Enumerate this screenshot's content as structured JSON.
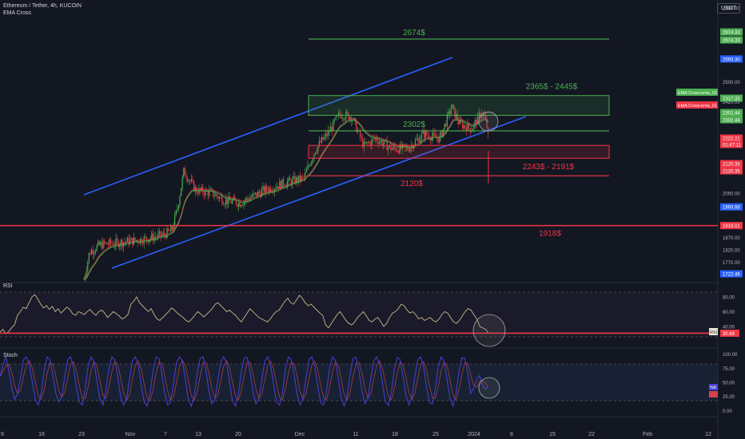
{
  "header": {
    "symbol": "Ethereum / Tether, 4h, KUCOIN",
    "indicator": "EMA Cross",
    "currency": "USDT"
  },
  "panes": {
    "rsi": "RSI",
    "stoch": "Stoch"
  },
  "colors": {
    "background": "#131722",
    "green": "#4caf50",
    "red": "#f23645",
    "blue": "#2962ff",
    "rsi_line": "#c8b98a",
    "stoch_k": "#4b3fd9",
    "stoch_d": "#d4434b"
  },
  "chart_data": {
    "type": "candlestick",
    "price_axis": {
      "ticks": [
        "2800.00",
        "2674.33",
        "2674.33",
        "2593.30",
        "2500.00",
        "2420.00",
        "2317.33",
        "2302.44",
        "2302.44",
        "2260.00",
        "2222.21",
        "01:47:11",
        "2120.35",
        "2120.35",
        "2050.00",
        "1993.66",
        "1918.01",
        "1870.00",
        "1820.00",
        "1770.00",
        "1722.46"
      ],
      "ylim": [
        1700,
        2800
      ]
    },
    "time_axis": [
      "9",
      "16",
      "23",
      "Nov",
      "7",
      "13",
      "20",
      "Dec",
      "11",
      "18",
      "25",
      "2024",
      "8",
      "15",
      "22",
      "Feb",
      "12"
    ],
    "levels": [
      {
        "price": 2674,
        "label": "2674$",
        "color": "green"
      },
      {
        "price": 2302,
        "label": "2302$",
        "color": "green"
      },
      {
        "price": 2120,
        "label": "2120$",
        "color": "red"
      },
      {
        "price": 1918,
        "label": "1918$",
        "color": "red"
      }
    ],
    "zones": [
      {
        "from": 2365,
        "to": 2445,
        "label": "2365$ - 2445$",
        "color": "green"
      },
      {
        "from": 2191,
        "to": 2243,
        "label": "2243$ - 2191$",
        "color": "red"
      }
    ],
    "ema_labels": [
      {
        "text": "EMA Cross:ema_02",
        "price": 2317.33,
        "color": "green"
      },
      {
        "text": "EMA Cross:ema_01",
        "price": 2302.44,
        "color": "red"
      }
    ],
    "rsi": {
      "ticks": [
        "80.00",
        "60.00",
        "40.00",
        "30.69"
      ],
      "ylim": [
        15,
        95
      ],
      "current": 30.69,
      "level": 30.69,
      "badge": "RSI",
      "values": [
        32,
        36,
        30,
        33,
        38,
        42,
        55,
        60,
        66,
        64,
        72,
        80,
        83,
        77,
        70,
        65,
        68,
        63,
        67,
        60,
        64,
        58,
        62,
        66,
        63,
        57,
        55,
        60,
        58,
        56,
        60,
        63,
        58,
        55,
        60,
        62,
        58,
        52,
        56,
        60,
        57,
        54,
        50,
        52,
        56,
        70,
        74,
        80,
        72,
        68,
        64,
        60,
        64,
        56,
        50,
        48,
        52,
        56,
        60,
        65,
        62,
        58,
        55,
        52,
        48,
        46,
        50,
        55,
        60,
        57,
        53,
        56,
        60,
        64,
        70,
        72,
        68,
        64,
        60,
        62,
        58,
        55,
        50,
        46,
        52,
        58,
        64,
        60,
        56,
        52,
        50,
        48,
        46,
        50,
        56,
        60,
        62,
        68,
        74,
        78,
        72,
        70,
        76,
        82,
        78,
        72,
        68,
        70,
        66,
        62,
        58,
        55,
        42,
        38,
        44,
        50,
        56,
        60,
        54,
        48,
        44,
        42,
        46,
        52,
        56,
        60,
        54,
        48,
        46,
        50,
        52,
        46,
        40,
        44,
        52,
        58,
        60,
        64,
        70,
        68,
        62,
        58,
        60,
        56,
        50,
        52,
        48,
        50,
        52,
        48,
        46,
        50,
        56,
        60,
        58,
        52,
        46,
        44,
        48,
        54,
        60,
        64,
        62,
        56,
        50,
        40,
        38,
        36,
        31
      ]
    },
    "stoch": {
      "ticks": [
        "100.00",
        "75.00",
        "50.00",
        "25.00",
        "0.00"
      ],
      "ylim": [
        -5,
        105
      ],
      "badge": "%K",
      "k": [
        60,
        80,
        95,
        70,
        40,
        20,
        30,
        60,
        90,
        95,
        80,
        50,
        20,
        10,
        30,
        70,
        95,
        90,
        60,
        30,
        15,
        25,
        60,
        90,
        95,
        75,
        40,
        15,
        10,
        40,
        80,
        95,
        85,
        50,
        20,
        10,
        35,
        75,
        95,
        90,
        60,
        25,
        10,
        20,
        55,
        88,
        95,
        80,
        45,
        15,
        8,
        30,
        70,
        95,
        92,
        65,
        30,
        10,
        15,
        50,
        85,
        95,
        88,
        55,
        20,
        8,
        25,
        65,
        92,
        95,
        70,
        35,
        12,
        18,
        52,
        86,
        95,
        85,
        50,
        18,
        8,
        28,
        68,
        93,
        94,
        68,
        32,
        12,
        20,
        55,
        88,
        95,
        80,
        45,
        15,
        10,
        30,
        72,
        95,
        90,
        62,
        28,
        10,
        22,
        58,
        90,
        95,
        78,
        42,
        14,
        10,
        35,
        75,
        95,
        88,
        55,
        22,
        8,
        26,
        64,
        92,
        94,
        70,
        36,
        12,
        20,
        56,
        88,
        95,
        82,
        48,
        16,
        9,
        32,
        72,
        94,
        90,
        60,
        26,
        10,
        24,
        60,
        90,
        95,
        76,
        40,
        14,
        12,
        40,
        78,
        95,
        86,
        52,
        20,
        8,
        30,
        70,
        93,
        92,
        66,
        30,
        40,
        55,
        62,
        45,
        38,
        42
      ]
    }
  }
}
